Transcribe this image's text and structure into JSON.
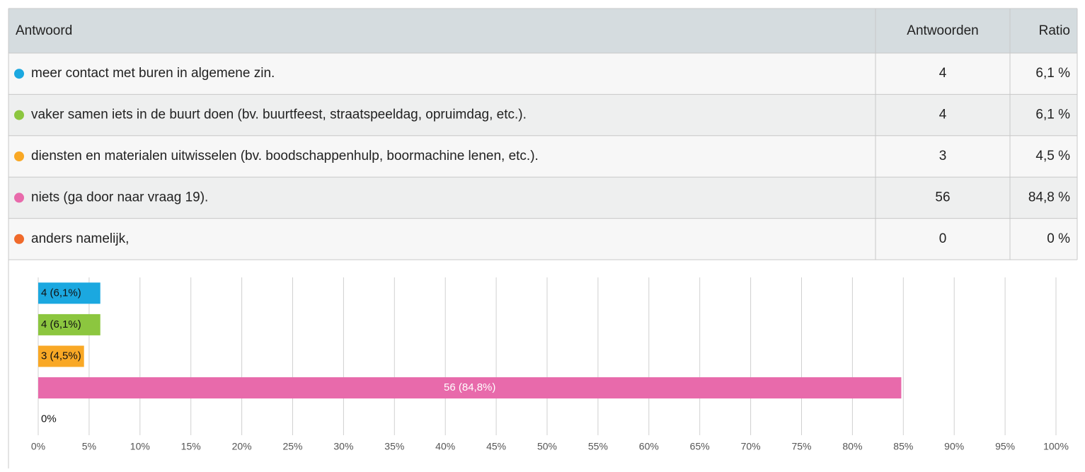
{
  "table": {
    "header": [
      "Antwoord",
      "Antwoorden",
      "Ratio"
    ],
    "rows": [
      {
        "color": "#1ba8e0",
        "label": "meer contact met buren in algemene zin.",
        "count": 4,
        "ratio": "6,1 %"
      },
      {
        "color": "#8cc63f",
        "label": "vaker samen iets in de buurt doen (bv. buurtfeest, straatspeeldag, opruimdag, etc.).",
        "count": 4,
        "ratio": "6,1 %"
      },
      {
        "color": "#f9a825",
        "label": "diensten en materialen uitwisselen (bv. boodschappenhulp, boormachine lenen, etc.).",
        "count": 3,
        "ratio": "4,5 %"
      },
      {
        "color": "#e86aab",
        "label": "niets (ga door naar vraag 19).",
        "count": 56,
        "ratio": "84,8 %"
      },
      {
        "color": "#f06a2b",
        "label": "anders namelijk,",
        "count": 0,
        "ratio": "0 %"
      }
    ]
  },
  "chart_data": {
    "type": "bar",
    "orientation": "horizontal",
    "values": [
      6.1,
      6.1,
      4.5,
      84.8,
      0
    ],
    "value_labels": [
      "4 (6,1%)",
      "4 (6,1%)",
      "3 (4,5%)",
      "56 (84,8%)",
      "0%"
    ],
    "colors": [
      "#1ba8e0",
      "#8cc63f",
      "#f9a825",
      "#e86aab",
      "#f06a2b"
    ],
    "xlim": [
      0,
      100
    ],
    "xticks": [
      {
        "value": 0,
        "label": "0%"
      },
      {
        "value": 5,
        "label": "5%"
      },
      {
        "value": 10,
        "label": "10%"
      },
      {
        "value": 15,
        "label": "15%"
      },
      {
        "value": 20,
        "label": "20%"
      },
      {
        "value": 25,
        "label": "25%"
      },
      {
        "value": 30,
        "label": "30%"
      },
      {
        "value": 35,
        "label": "35%"
      },
      {
        "value": 40,
        "label": "40%"
      },
      {
        "value": 45,
        "label": "45%"
      },
      {
        "value": 50,
        "label": "50%"
      },
      {
        "value": 55,
        "label": "55%"
      },
      {
        "value": 60,
        "label": "60%"
      },
      {
        "value": 65,
        "label": "65%"
      },
      {
        "value": 70,
        "label": "70%"
      },
      {
        "value": 75,
        "label": "75%"
      },
      {
        "value": 80,
        "label": "80%"
      },
      {
        "value": 85,
        "label": "85%"
      },
      {
        "value": 90,
        "label": "90%"
      },
      {
        "value": 95,
        "label": "95%"
      },
      {
        "value": 100,
        "label": "100%"
      }
    ],
    "grid": true
  }
}
